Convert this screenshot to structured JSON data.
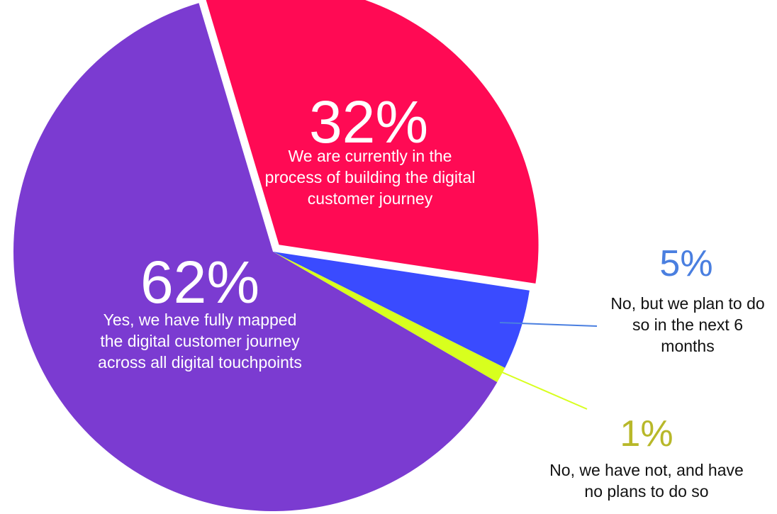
{
  "chart_data": {
    "type": "pie",
    "categories": [
      "We are currently in the process of building the digital customer journey",
      "No, but we plan to do so in the next 6 months",
      "No, we have not, and have no plans to do so",
      "Yes, we have fully mapped the digital customer journey across all digital touchpoints"
    ],
    "values": [
      32,
      5,
      1,
      62
    ],
    "value_labels": [
      "32%",
      "5%",
      "1%",
      "62%"
    ],
    "colors": [
      "#ff0a54",
      "#3a4bff",
      "#d8ff1e",
      "#7b3bd1"
    ]
  }
}
